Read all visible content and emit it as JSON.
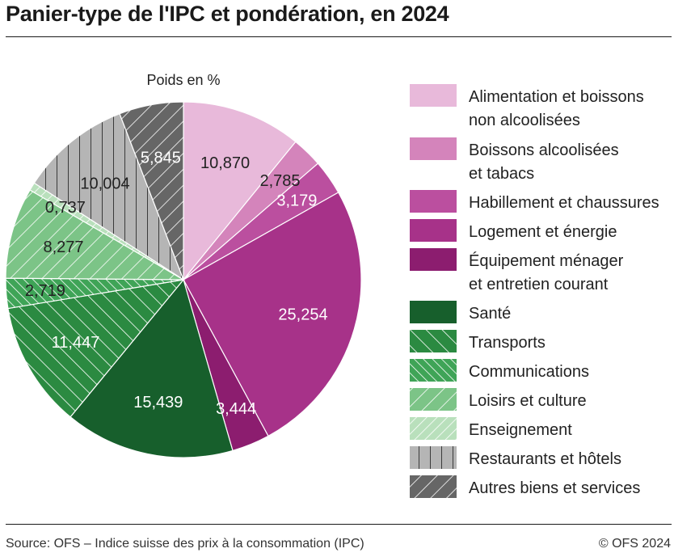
{
  "title": "Panier-type de l'IPC et pondération, en 2024",
  "footer": {
    "source": "Source: OFS – Indice suisse des prix à la consommation (IPC)",
    "copyright": "© OFS 2024"
  },
  "chart_data": {
    "type": "pie",
    "subtitle": "Poids en %",
    "decimal_separator": ",",
    "slices": [
      {
        "name": [
          "Alimentation et boissons",
          "non alcoolisées"
        ],
        "value": 10.87,
        "label": "10,870",
        "color": "#e8b9da",
        "pattern": "none",
        "label_color": "#222222"
      },
      {
        "name": [
          "Boissons alcoolisées",
          "et tabacs"
        ],
        "value": 2.785,
        "label": "2,785",
        "color": "#d484bb",
        "pattern": "none",
        "label_color": "#222222"
      },
      {
        "name": [
          "Habillement et chaussures"
        ],
        "value": 3.179,
        "label": "3,179",
        "color": "#bb4f9f",
        "pattern": "none",
        "label_color": "#ffffff"
      },
      {
        "name": [
          "Logement et énergie"
        ],
        "value": 25.254,
        "label": "25,254",
        "color": "#a73289",
        "pattern": "none",
        "label_color": "#ffffff"
      },
      {
        "name": [
          "Équipement ménager",
          "et entretien courant"
        ],
        "value": 3.444,
        "label": "3,444",
        "color": "#8c1d6f",
        "pattern": "none",
        "label_color": "#ffffff"
      },
      {
        "name": [
          "Santé"
        ],
        "value": 15.439,
        "label": "15,439",
        "color": "#175f2c",
        "pattern": "none",
        "label_color": "#ffffff"
      },
      {
        "name": [
          "Transports"
        ],
        "value": 11.447,
        "label": "11,447",
        "color": "#2b8a41",
        "pattern": "backslash",
        "label_color": "#ffffff"
      },
      {
        "name": [
          "Communications"
        ],
        "value": 2.719,
        "label": "2,719",
        "color": "#3fa457",
        "pattern": "backslash-dense",
        "label_color": "#222222"
      },
      {
        "name": [
          "Loisirs et culture"
        ],
        "value": 8.277,
        "label": "8,277",
        "color": "#7cc487",
        "pattern": "slash",
        "label_color": "#222222"
      },
      {
        "name": [
          "Enseignement"
        ],
        "value": 0.737,
        "label": "0,737",
        "color": "#b9e0bc",
        "pattern": "slash-dense",
        "label_color": "#222222"
      },
      {
        "name": [
          "Restaurants et hôtels"
        ],
        "value": 10.004,
        "label": "10,004",
        "color": "#b5b5b5",
        "pattern": "vertical",
        "label_color": "#222222"
      },
      {
        "name": [
          "Autres biens et services"
        ],
        "value": 5.845,
        "label": "5,845",
        "color": "#666666",
        "pattern": "slash",
        "label_color": "#ffffff"
      }
    ],
    "legend_position": "right"
  }
}
